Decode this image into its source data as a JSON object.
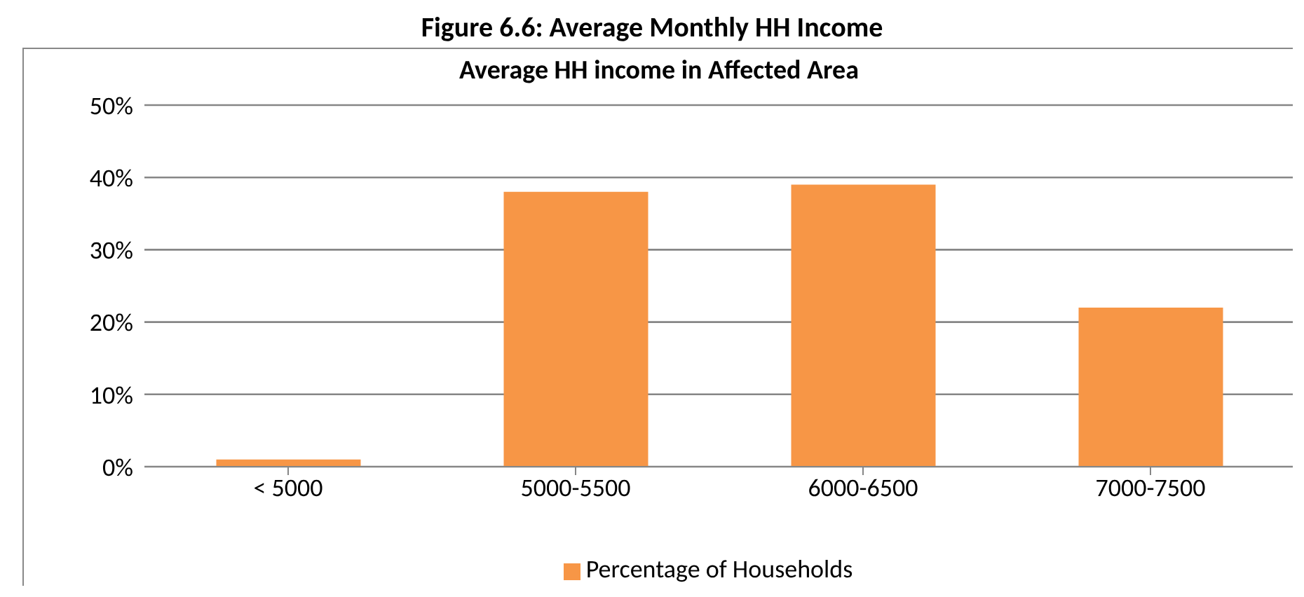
{
  "chart_data": {
    "type": "bar",
    "title": "Figure 6.6: Average Monthly HH Income",
    "subtitle": "Average HH income in Affected Area",
    "categories": [
      "< 5000",
      "5000-5500",
      "6000-6500",
      "7000-7500"
    ],
    "series": [
      {
        "name": "Percentage of Households",
        "color": "#f79646",
        "values": [
          1,
          38,
          39,
          22
        ]
      }
    ],
    "ylim": [
      0,
      50
    ],
    "yticks": [
      {
        "value": 0,
        "label": "0%"
      },
      {
        "value": 10,
        "label": "10%"
      },
      {
        "value": 20,
        "label": "20%"
      },
      {
        "value": 30,
        "label": "30%"
      },
      {
        "value": 40,
        "label": "40%"
      },
      {
        "value": 50,
        "label": "50%"
      }
    ],
    "grid": "y",
    "legend": "bottom"
  }
}
